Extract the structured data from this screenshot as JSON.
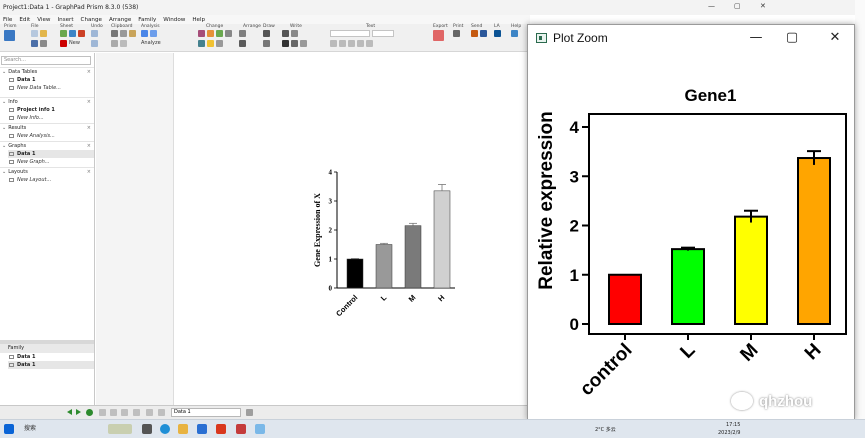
{
  "window": {
    "title": "Project1:Data 1 - GraphPad Prism 8.3.0 (538)",
    "controls": [
      "—",
      "▢",
      "✕"
    ]
  },
  "menu": [
    "File",
    "Edit",
    "View",
    "Insert",
    "Change",
    "Arrange",
    "Family",
    "Window",
    "Help"
  ],
  "ribbon": {
    "groups": [
      "Prism",
      "File",
      "Sheet",
      "Undo",
      "Clipboard",
      "Analysis",
      "Change",
      "Arrange",
      "Draw",
      "Write",
      "Text",
      "Export",
      "Print",
      "Send",
      "LA",
      "Help"
    ],
    "analyze_label": "Analyze",
    "new_label": "New"
  },
  "navigator": {
    "search_placeholder": "Search...",
    "sections": [
      {
        "name": "Data Tables",
        "items": [
          {
            "label": "Data 1",
            "selected": false,
            "new": false
          },
          {
            "label": "New Data Table...",
            "selected": false,
            "new": true
          }
        ]
      },
      {
        "name": "Info",
        "items": [
          {
            "label": "Project info 1",
            "selected": false,
            "new": false
          },
          {
            "label": "New Info...",
            "selected": false,
            "new": true
          }
        ]
      },
      {
        "name": "Results",
        "items": [
          {
            "label": "New Analysis...",
            "selected": false,
            "new": true
          }
        ]
      },
      {
        "name": "Graphs",
        "items": [
          {
            "label": "Data 1",
            "selected": true,
            "new": false
          },
          {
            "label": "New Graph...",
            "selected": false,
            "new": true
          }
        ]
      },
      {
        "name": "Layouts",
        "items": [
          {
            "label": "New Layout...",
            "selected": false,
            "new": true
          }
        ]
      }
    ],
    "family": {
      "header": "Family",
      "items": [
        "Data 1",
        "Data 1"
      ]
    }
  },
  "sheet_selector": "Data 1",
  "prism_graph": {
    "chart_data": {
      "type": "bar",
      "categories": [
        "Control",
        "L",
        "M",
        "H"
      ],
      "values": [
        1.0,
        1.5,
        2.15,
        3.35
      ],
      "errors": [
        0.02,
        0.04,
        0.08,
        0.22
      ],
      "ylabel": "Gene Expression of X",
      "ylim": [
        0,
        4
      ],
      "yticks": [
        "0",
        "1",
        "2",
        "3",
        "4"
      ],
      "colors": [
        "#000000",
        "#999999",
        "#7a7a7a",
        "#d0d0d0"
      ]
    }
  },
  "plot_zoom": {
    "title": "Plot Zoom",
    "chart_data": {
      "type": "bar",
      "title": "Gene1",
      "categories": [
        "control",
        "L",
        "M",
        "H"
      ],
      "values": [
        1.0,
        1.52,
        2.18,
        3.37
      ],
      "errors": [
        0.0,
        0.03,
        0.12,
        0.14
      ],
      "ylabel": "Relative expression",
      "ylim": [
        0,
        4
      ],
      "yticks": [
        "0",
        "1",
        "2",
        "3",
        "4"
      ],
      "colors": [
        "#ff0000",
        "#00ff00",
        "#ffff00",
        "#ffa500"
      ]
    }
  },
  "taskbar": {
    "search": "搜索",
    "weather": "2°C 多云",
    "time": "17:15",
    "date": "2023/2/9"
  },
  "watermark": "qhzhou"
}
